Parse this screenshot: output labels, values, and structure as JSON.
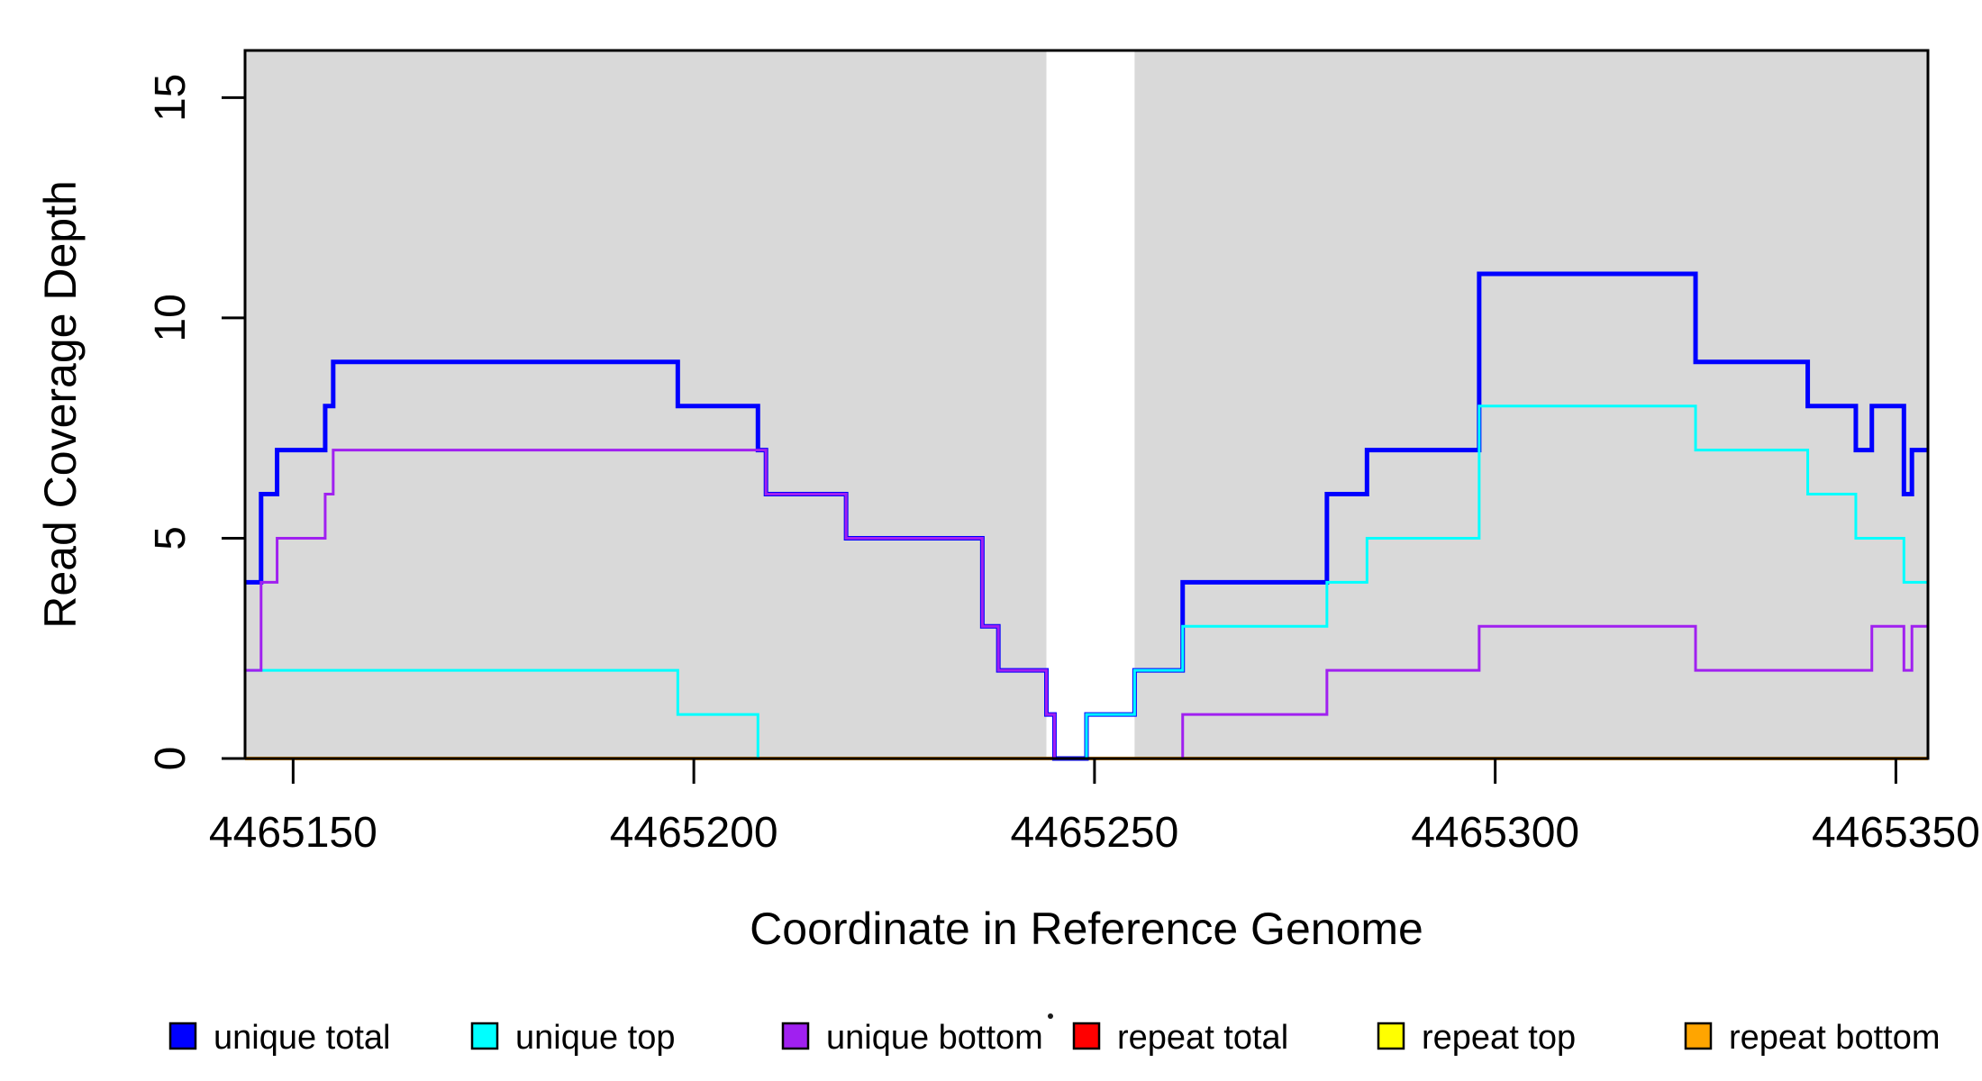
{
  "chart_data": {
    "type": "line",
    "subtype": "step-coverage-plot",
    "title": "",
    "xlabel": "Coordinate in Reference Genome",
    "ylabel": "Read Coverage Depth",
    "xlim": [
      4465144,
      4465354
    ],
    "ylim": [
      0,
      16.07
    ],
    "x_ticks": [
      "4465150",
      "4465200",
      "4465250",
      "4465300",
      "4465350"
    ],
    "y_ticks": [
      "0",
      "5",
      "10",
      "15"
    ],
    "grid": false,
    "legend_position": "bottom",
    "shading_color": "#D9D9D9",
    "shaded_regions": [
      [
        4465144,
        4465244
      ],
      [
        4465255,
        4465354
      ]
    ],
    "draw_order": [
      "repeat total",
      "repeat top",
      "repeat bottom",
      "unique total",
      "unique top",
      "unique bottom"
    ],
    "series": [
      {
        "name": "unique total",
        "color": "#0000FF",
        "width": 5,
        "steps": [
          [
            4465144,
            4
          ],
          [
            4465146,
            6
          ],
          [
            4465148,
            7
          ],
          [
            4465154,
            8
          ],
          [
            4465155,
            9
          ],
          [
            4465198,
            8
          ],
          [
            4465208,
            7
          ],
          [
            4465209,
            6
          ],
          [
            4465219,
            5
          ],
          [
            4465236,
            3
          ],
          [
            4465238,
            2
          ],
          [
            4465244,
            1
          ],
          [
            4465245,
            0
          ],
          [
            4465249,
            1
          ],
          [
            4465255,
            2
          ],
          [
            4465261,
            4
          ],
          [
            4465279,
            6
          ],
          [
            4465284,
            7
          ],
          [
            4465298,
            11
          ],
          [
            4465325,
            9
          ],
          [
            4465339,
            8
          ],
          [
            4465345,
            7
          ],
          [
            4465347,
            8
          ],
          [
            4465351,
            6
          ],
          [
            4465352,
            7
          ]
        ]
      },
      {
        "name": "unique top",
        "color": "#00FFFF",
        "width": 3,
        "steps": [
          [
            4465144,
            2
          ],
          [
            4465198,
            1
          ],
          [
            4465208,
            0
          ],
          [
            4465249,
            1
          ],
          [
            4465255,
            2
          ],
          [
            4465261,
            3
          ],
          [
            4465279,
            4
          ],
          [
            4465284,
            5
          ],
          [
            4465298,
            8
          ],
          [
            4465325,
            7
          ],
          [
            4465339,
            6
          ],
          [
            4465345,
            5
          ],
          [
            4465351,
            4
          ]
        ]
      },
      {
        "name": "unique bottom",
        "color": "#A020F0",
        "width": 3,
        "steps": [
          [
            4465144,
            2
          ],
          [
            4465146,
            4
          ],
          [
            4465148,
            5
          ],
          [
            4465154,
            6
          ],
          [
            4465155,
            7
          ],
          [
            4465209,
            6
          ],
          [
            4465219,
            5
          ],
          [
            4465236,
            3
          ],
          [
            4465238,
            2
          ],
          [
            4465244,
            1
          ],
          [
            4465245,
            0
          ],
          [
            4465261,
            1
          ],
          [
            4465279,
            2
          ],
          [
            4465298,
            3
          ],
          [
            4465325,
            2
          ],
          [
            4465347,
            3
          ],
          [
            4465351,
            2
          ],
          [
            4465352,
            3
          ]
        ]
      },
      {
        "name": "repeat total",
        "color": "#FF0000",
        "width": 3,
        "steps": [
          [
            4465144,
            0
          ]
        ]
      },
      {
        "name": "repeat top",
        "color": "#FFFF00",
        "width": 3,
        "steps": [
          [
            4465144,
            0
          ]
        ]
      },
      {
        "name": "repeat bottom",
        "color": "#FFA500",
        "width": 4,
        "steps": [
          [
            4465144,
            0
          ]
        ]
      }
    ],
    "legend_stray_mark": "·"
  }
}
